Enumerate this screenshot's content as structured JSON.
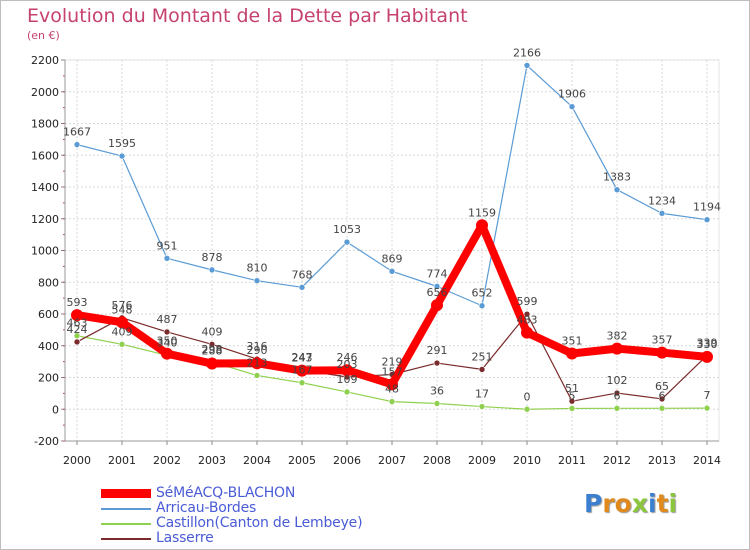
{
  "chart_data": {
    "type": "line",
    "title": "Evolution du Montant de la Dette par Habitant",
    "ylabel": "(en €)",
    "xlabel": "",
    "ylim": [
      -200,
      2200
    ],
    "yticks": [
      -200,
      0,
      200,
      400,
      600,
      800,
      1000,
      1200,
      1400,
      1600,
      1800,
      2000,
      2200
    ],
    "x": [
      "2000",
      "2001",
      "2002",
      "2003",
      "2004",
      "2005",
      "2006",
      "2007",
      "2008",
      "2009",
      "2010",
      "2011",
      "2012",
      "2013",
      "2014"
    ],
    "grid": true,
    "legend_position": "bottom-left",
    "series": [
      {
        "name": "SéMéACQ-BLACHON",
        "color": "#ff0000",
        "values": [
          593,
          548,
          350,
          288,
          290,
          243,
          246,
          157,
          656,
          1159,
          483,
          351,
          382,
          357,
          330
        ]
      },
      {
        "name": "Arricau-Bordes",
        "color": "#5b9bd5",
        "values": [
          1667,
          1595,
          951,
          878,
          810,
          768,
          1053,
          869,
          774,
          652,
          2166,
          1906,
          1383,
          1234,
          1194
        ]
      },
      {
        "name": "Castillon(Canton de Lembeye)",
        "color": "#8fd14f",
        "values": [
          463,
          409,
          340,
          298,
          213,
          167,
          109,
          48,
          36,
          17,
          0,
          5,
          6,
          6,
          7
        ]
      },
      {
        "name": "Lasserre",
        "color": "#7b2b2b",
        "values": [
          424,
          576,
          487,
          409,
          316,
          247,
          203,
          219,
          291,
          251,
          599,
          51,
          102,
          65,
          339
        ]
      }
    ]
  },
  "legend": {
    "items": [
      {
        "label": "SéMéACQ-BLACHON",
        "color": "#ff0000"
      },
      {
        "label": "Arricau-Bordes",
        "color": "#5b9bd5"
      },
      {
        "label": "Castillon(Canton de Lembeye)",
        "color": "#8fd14f"
      },
      {
        "label": "Lasserre",
        "color": "#7b2b2b"
      }
    ]
  },
  "logo": {
    "letters": [
      {
        "ch": "P",
        "color": "#3a7fd0"
      },
      {
        "ch": "r",
        "color": "#e08a1e"
      },
      {
        "ch": "o",
        "color": "#e08a1e"
      },
      {
        "ch": "x",
        "color": "#8cc63f"
      },
      {
        "ch": "i",
        "color": "#3a7fd0"
      },
      {
        "ch": "t",
        "color": "#e08a1e"
      },
      {
        "ch": "i",
        "color": "#8cc63f"
      }
    ]
  }
}
